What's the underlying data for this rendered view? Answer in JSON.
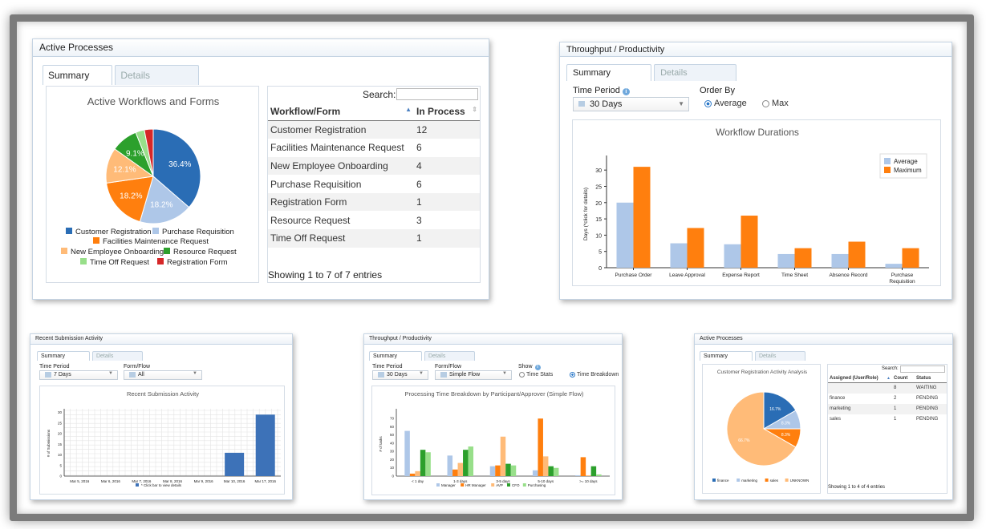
{
  "panel1": {
    "header": "Active Processes",
    "tabs": [
      "Summary",
      "Details"
    ],
    "chart_title": "Active Workflows and Forms",
    "search_label": "Search:",
    "columns": [
      "Workflow/Form",
      "In Process"
    ],
    "rows": [
      {
        "name": "Customer Registration",
        "count": "12"
      },
      {
        "name": "Facilities Maintenance Request",
        "count": "6"
      },
      {
        "name": "New Employee Onboarding",
        "count": "4"
      },
      {
        "name": "Purchase Requisition",
        "count": "6"
      },
      {
        "name": "Registration Form",
        "count": "1"
      },
      {
        "name": "Resource Request",
        "count": "3"
      },
      {
        "name": "Time Off Request",
        "count": "1"
      }
    ],
    "footer": "Showing 1 to 7 of 7 entries"
  },
  "panel2": {
    "header": "Throughput / Productivity",
    "tabs": [
      "Summary",
      "Details"
    ],
    "time_period_label": "Time Period",
    "time_period_value": "30 Days",
    "order_by_label": "Order By",
    "order_options": [
      "Average",
      "Max"
    ],
    "order_selected": "Average"
  },
  "panel3": {
    "header": "Recent Submission Activity",
    "tabs": [
      "Summary",
      "Details"
    ],
    "time_period_label": "Time Period",
    "time_period_value": "7 Days",
    "form_flow_label": "Form/Flow",
    "form_flow_value": "All"
  },
  "panel4": {
    "header": "Throughput / Productivity",
    "tabs": [
      "Summary",
      "Details"
    ],
    "time_period_label": "Time Period",
    "time_period_value": "30 Days",
    "form_flow_label": "Form/Flow",
    "form_flow_value": "Simple Flow",
    "show_label": "Show",
    "show_options": [
      "Time Stats",
      "Time Breakdown"
    ],
    "show_selected": "Time Breakdown"
  },
  "panel5": {
    "header": "Active Processes",
    "tabs": [
      "Summary",
      "Details"
    ],
    "chart_title": "Customer Registration Activity Analysis",
    "search_label": "Search:",
    "columns": [
      "Assigned (User/Role)",
      "Count",
      "Status"
    ],
    "rows": [
      {
        "name": "",
        "count": "8",
        "status": "WAITING"
      },
      {
        "name": "finance",
        "count": "2",
        "status": "PENDING"
      },
      {
        "name": "marketing",
        "count": "1",
        "status": "PENDING"
      },
      {
        "name": "sales",
        "count": "1",
        "status": "PENDING"
      }
    ],
    "footer": "Showing 1 to 4 of 4 entries"
  },
  "colors": {
    "dark_blue": "#2a6db5",
    "light_blue": "#aec7e8",
    "orange": "#ff7f0e",
    "light_orange": "#ffbb78",
    "green": "#2ca02c",
    "light_green": "#98df8a",
    "red": "#d62728"
  },
  "chart_data": [
    {
      "type": "pie",
      "title": "Active Workflows and Forms",
      "categories": [
        "Customer Registration",
        "Purchase Requisition",
        "Facilities Maintenance Request",
        "New Employee Onboarding",
        "Resource Request",
        "Time Off Request",
        "Registration Form"
      ],
      "values": [
        12,
        6,
        6,
        4,
        3,
        1,
        1
      ],
      "slice_labels": [
        "36.4%",
        "18.2%",
        "18.2%",
        "12.1%",
        "9.1%",
        "",
        ""
      ],
      "colors": [
        "#2a6db5",
        "#aec7e8",
        "#ff7f0e",
        "#ffbb78",
        "#2ca02c",
        "#98df8a",
        "#d62728"
      ],
      "legend": "bottom"
    },
    {
      "type": "bar",
      "title": "Workflow Durations",
      "categories": [
        "Purchase Order",
        "Leave Approval",
        "Expense Report",
        "Time Sheet",
        "Absence Record",
        "Purchase Requisition"
      ],
      "series": [
        {
          "name": "Average",
          "values": [
            20,
            7.5,
            7.2,
            4.2,
            4.2,
            1.2
          ],
          "color": "#aec7e8"
        },
        {
          "name": "Maximum",
          "values": [
            31,
            12.2,
            16,
            6,
            8,
            6
          ],
          "color": "#ff7f0e"
        }
      ],
      "ylabel": "Days (*click for details)",
      "yticks": [
        0,
        5,
        10,
        15,
        20,
        25,
        30
      ],
      "ylim": [
        0,
        33
      ],
      "legend": "top-right"
    },
    {
      "type": "bar",
      "title": "Recent Submission Activity",
      "categories": [
        "Mar 5, 2016",
        "Mar 6, 2016",
        "Mar 7, 2016",
        "Mar 8, 2016",
        "Mar 9, 2016",
        "Mar 10, 2016",
        "Mar 17, 2016"
      ],
      "values": [
        0,
        0,
        0,
        0,
        0,
        11,
        29
      ],
      "ylabel": "# of Submissions",
      "yticks": [
        0,
        5,
        10,
        15,
        20,
        25,
        30
      ],
      "ylim": [
        0,
        31
      ],
      "legend_note": "* Click bar to view details",
      "grid": true,
      "color": "#3d72b8"
    },
    {
      "type": "bar",
      "title": "Processing Time Breakdown by Participant/Approver (Simple Flow)",
      "categories": [
        "< 1 day",
        "1-3 days",
        "3-5 days",
        "5-10 days",
        ">= 10 days"
      ],
      "series": [
        {
          "name": "Manager",
          "values": [
            55,
            25,
            12,
            7,
            1
          ],
          "color": "#aec7e8"
        },
        {
          "name": "HR Manager",
          "values": [
            3,
            8,
            13,
            70,
            23
          ],
          "color": "#ff7f0e"
        },
        {
          "name": "AVP",
          "values": [
            6,
            16,
            48,
            24,
            1
          ],
          "color": "#ffbb78"
        },
        {
          "name": "CFO",
          "values": [
            32,
            32,
            15,
            12,
            12
          ],
          "color": "#2ca02c"
        },
        {
          "name": "Purchasing",
          "values": [
            29,
            36,
            13,
            10,
            2
          ],
          "color": "#98df8a"
        }
      ],
      "ylabel": "# of tasks",
      "yticks": [
        0,
        10,
        20,
        30,
        40,
        50,
        60,
        70
      ],
      "ylim": [
        0,
        78
      ],
      "legend": "bottom"
    },
    {
      "type": "pie",
      "title": "Customer Registration Activity Analysis",
      "categories": [
        "finance",
        "marketing",
        "sales",
        "UNKNOWN"
      ],
      "values": [
        16.7,
        8.3,
        8.3,
        66.7
      ],
      "slice_labels": [
        "16.7%",
        "8.3%",
        "8.3%",
        "66.7%"
      ],
      "colors": [
        "#2a6db5",
        "#aec7e8",
        "#ff7f0e",
        "#ffbb78"
      ],
      "legend": "bottom"
    }
  ]
}
